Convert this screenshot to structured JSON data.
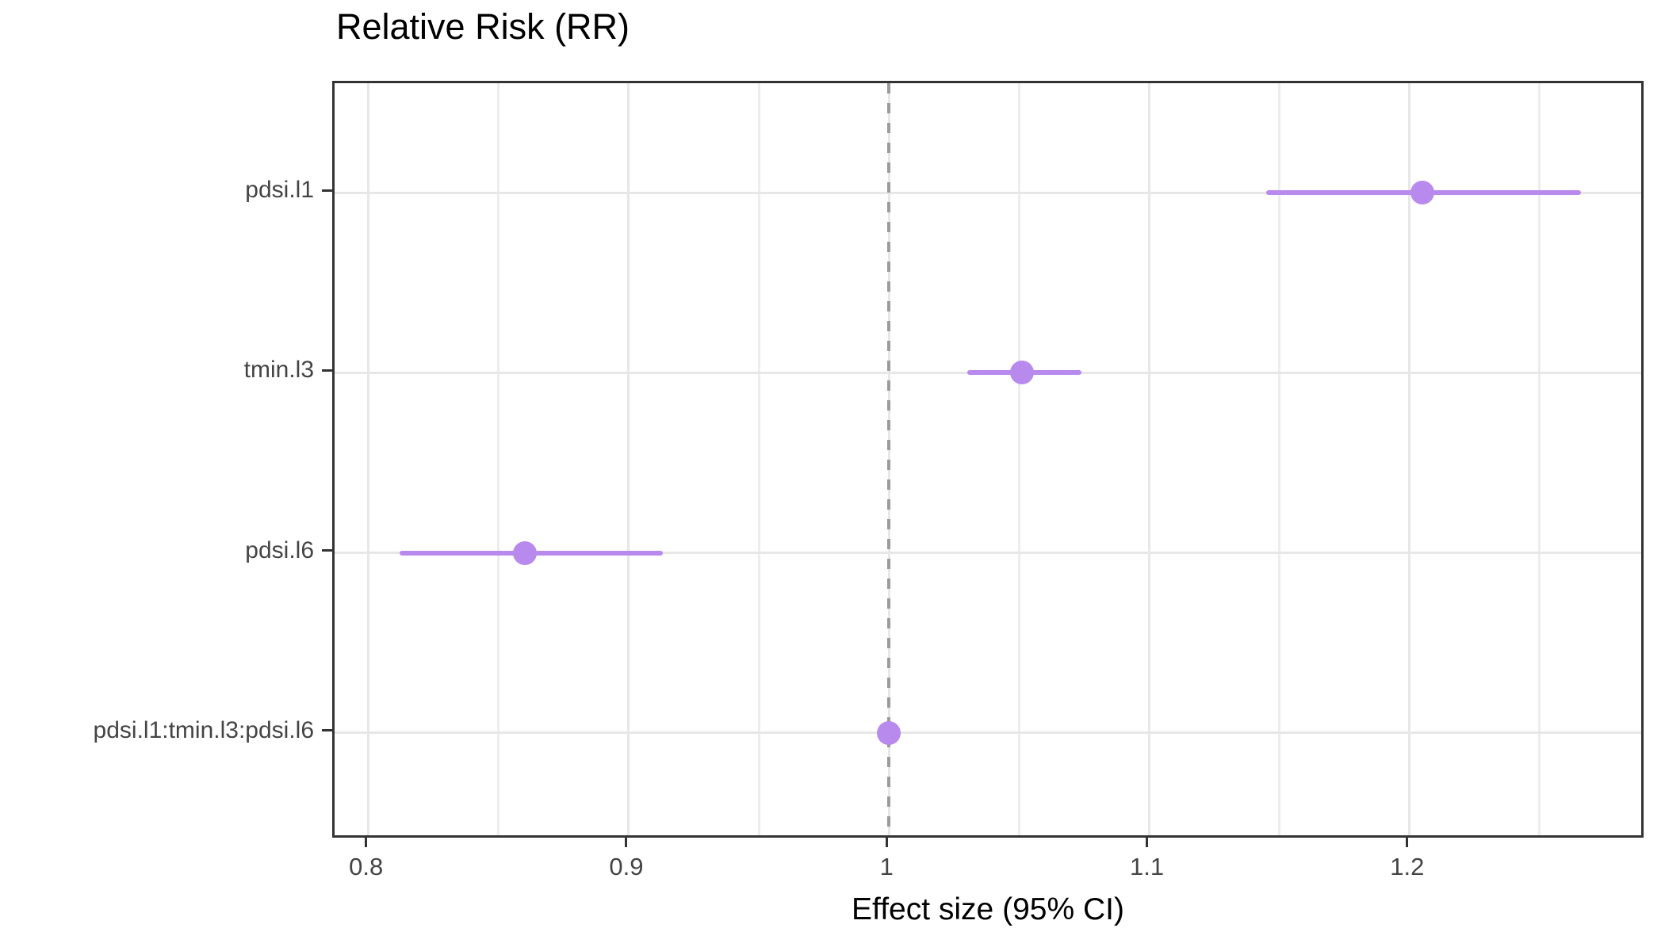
{
  "chart_data": {
    "type": "scatter",
    "subtype": "forest-plot-dot-with-ci",
    "orientation": "horizontal",
    "title": "Relative Risk (RR)",
    "xlabel": "Effect size (95% CI)",
    "ylabel": "",
    "categories": [
      "pdsi.l1",
      "tmin.l3",
      "pdsi.l6",
      "pdsi.l1:tmin.l3:pdsi.l6"
    ],
    "rows": [
      {
        "label": "pdsi.l1",
        "estimate": 1.205,
        "ci_low": 1.145,
        "ci_high": 1.266
      },
      {
        "label": "tmin.l3",
        "estimate": 1.051,
        "ci_low": 1.03,
        "ci_high": 1.074
      },
      {
        "label": "pdsi.l6",
        "estimate": 0.86,
        "ci_low": 0.812,
        "ci_high": 0.913
      },
      {
        "label": "pdsi.l1:tmin.l3:pdsi.l6",
        "estimate": 1.0,
        "ci_low": 0.997,
        "ci_high": 1.003
      }
    ],
    "x_ticks": [
      {
        "value": 0.8,
        "label": "0.8"
      },
      {
        "value": 0.9,
        "label": "0.9"
      },
      {
        "value": 1.0,
        "label": "1"
      },
      {
        "value": 1.1,
        "label": "1.1"
      },
      {
        "value": 1.2,
        "label": "1.2"
      }
    ],
    "x_minor_ticks": [
      0.85,
      0.95,
      1.05,
      1.15,
      1.25
    ],
    "xlim": [
      0.787,
      1.289
    ],
    "reference_line_x": 1.0,
    "grid": "vertical major+minor, horizontal major per category",
    "legend": "none",
    "colors": {
      "point": "#b98aed",
      "ci_line": "#b98aed",
      "reference_line": "#9b9b9b",
      "grid_major": "#e7e7e7",
      "grid_minor": "#ededed",
      "panel_border": "#333333",
      "tick_mark": "#333333",
      "axis_text": "#444444",
      "title_text": "#000000"
    }
  }
}
